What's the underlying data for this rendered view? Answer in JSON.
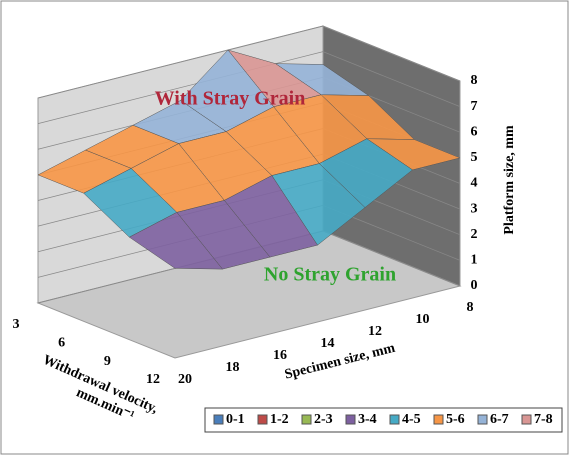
{
  "chart_data": {
    "type": "surface",
    "x_label": [
      "Withdrawal velocity,",
      "mm.min⁻¹"
    ],
    "y_label": "Specimen size, mm",
    "z_label": "Platform size, mm",
    "velocities": [
      3,
      6,
      9,
      12
    ],
    "sizes": [
      20,
      18,
      16,
      14,
      12,
      10,
      8
    ],
    "z": [
      [
        5,
        5.5,
        6,
        6.5,
        8,
        7,
        6.5
      ],
      [
        5,
        5.5,
        6,
        6,
        6.5,
        6.5,
        6
      ],
      [
        4,
        4.5,
        4.5,
        5,
        5,
        5.5,
        5
      ],
      [
        3.5,
        3,
        3,
        3,
        4,
        5,
        5
      ]
    ],
    "zlim": [
      0,
      8
    ],
    "zticks": [
      0,
      1,
      2,
      3,
      4,
      5,
      6,
      7,
      8
    ],
    "legend": [
      {
        "name": "0-1",
        "color": "#4a7ebb"
      },
      {
        "name": "1-2",
        "color": "#be4b48"
      },
      {
        "name": "2-3",
        "color": "#98b954"
      },
      {
        "name": "3-4",
        "color": "#7d60a0"
      },
      {
        "name": "4-5",
        "color": "#46aac5"
      },
      {
        "name": "5-6",
        "color": "#f79646"
      },
      {
        "name": "6-7",
        "color": "#95b3d7"
      },
      {
        "name": "7-8",
        "color": "#d99694"
      }
    ],
    "annotations": [
      {
        "text": "With Stray Grain",
        "color": "#b0263a"
      },
      {
        "text": "No Stray Grain",
        "color": "#2fa32f"
      }
    ]
  }
}
